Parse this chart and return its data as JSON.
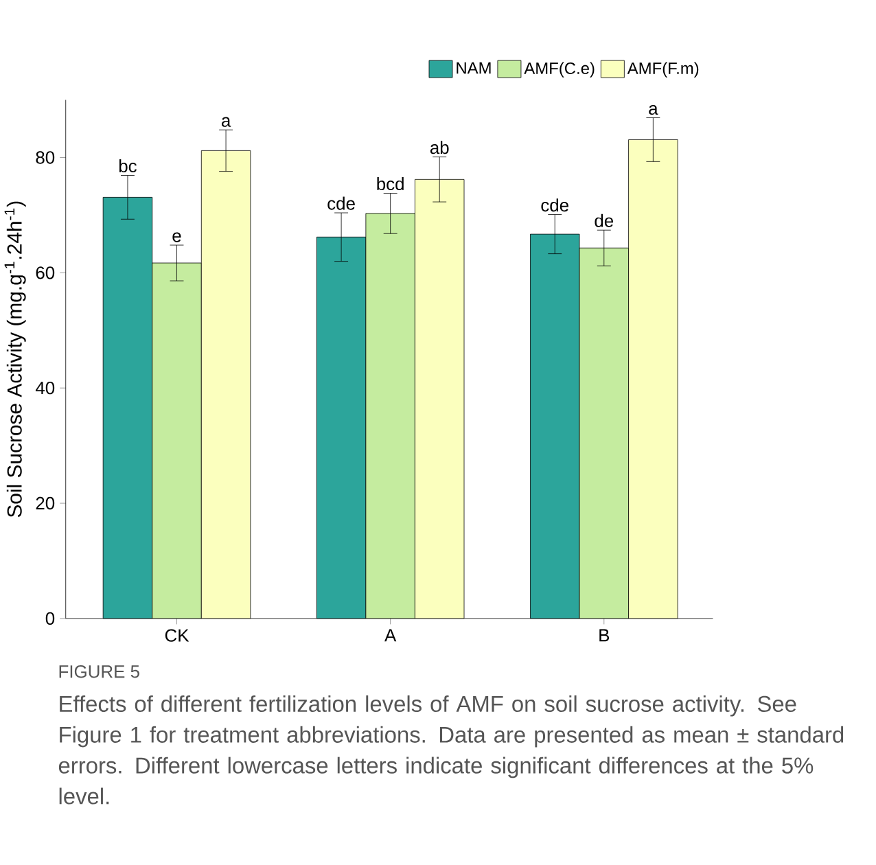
{
  "chart_data": {
    "type": "bar",
    "ylabel": "Soil Sucrose Activity (mg.g$^{-1}$.24h$^{-1}$)",
    "categories": [
      "CK",
      "A",
      "B"
    ],
    "series": [
      {
        "name": "NAM",
        "color": "#2ca59b",
        "values": [
          73.1,
          66.2,
          66.7
        ],
        "errors": [
          3.8,
          4.2,
          3.4
        ],
        "value_labels": [
          "bc",
          "cde",
          "cde"
        ]
      },
      {
        "name": "AMF(C.e)",
        "color": "#c5ec9f",
        "values": [
          61.7,
          70.3,
          64.3
        ],
        "errors": [
          3.1,
          3.5,
          3.1
        ],
        "value_labels": [
          "e",
          "bcd",
          "de"
        ]
      },
      {
        "name": "AMF(F.m)",
        "color": "#fbffbe",
        "values": [
          81.2,
          76.2,
          83.1
        ],
        "errors": [
          3.6,
          3.9,
          3.8
        ],
        "value_labels": [
          "a",
          "ab",
          "a"
        ]
      }
    ],
    "ylim": [
      0,
      90
    ],
    "yticks": [
      0,
      20,
      40,
      60,
      80
    ],
    "grid": false,
    "legend": "top right",
    "annotations": [
      "FIGURE 5",
      "Effects of different fertilization levels of AMF on soil sucrose activity. See Figure 1 for treatment abbreviations. Data are presented as mean ± standard errors. Different lowercase letters indicate significant differences at the 5% level."
    ]
  }
}
